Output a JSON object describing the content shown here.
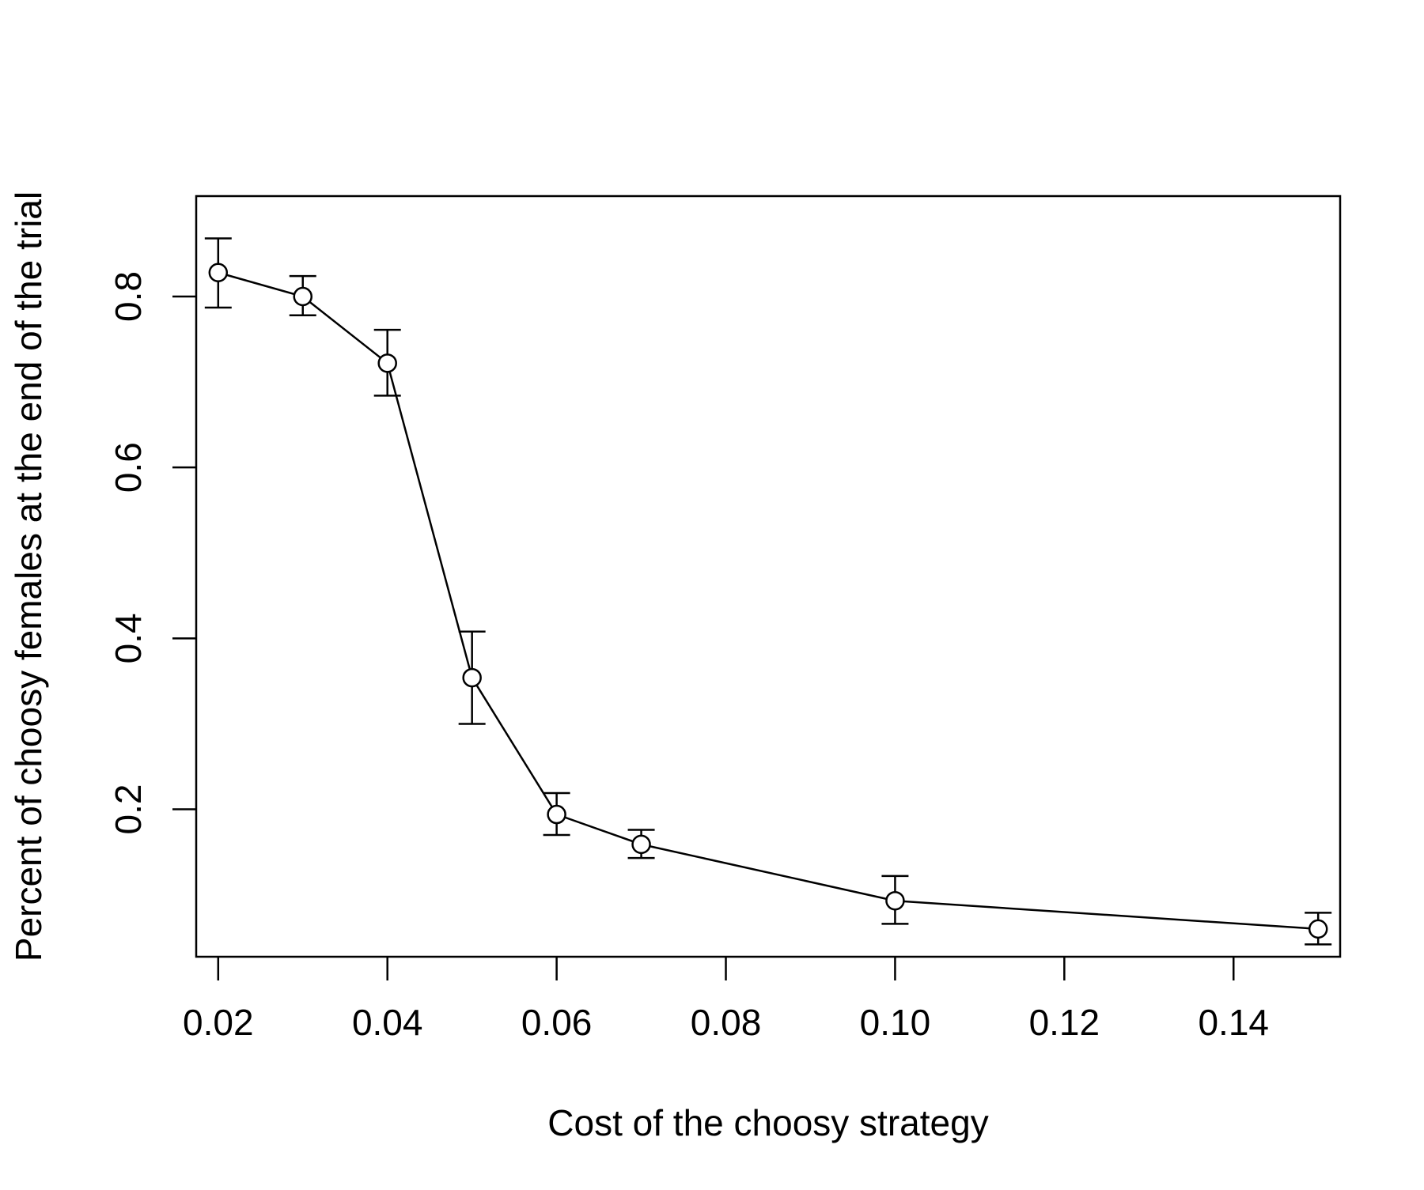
{
  "chart_data": {
    "type": "line",
    "title": "",
    "xlabel": "Cost of the choosy strategy",
    "ylabel": "Percent of choosy females at the end of the trial",
    "xlim": [
      0.0174,
      0.1526
    ],
    "ylim": [
      0.0275,
      0.9175
    ],
    "x_ticks": [
      0.02,
      0.04,
      0.06,
      0.08,
      0.1,
      0.12,
      0.14
    ],
    "x_tick_labels": [
      "0.02",
      "0.04",
      "0.06",
      "0.08",
      "0.10",
      "0.12",
      "0.14"
    ],
    "y_ticks": [
      0.2,
      0.4,
      0.6,
      0.8
    ],
    "y_tick_labels": [
      "0.2",
      "0.4",
      "0.6",
      "0.8"
    ],
    "grid": false,
    "marker": "open-circle",
    "error_bars": true,
    "colors": {
      "line": "#000000",
      "background": "#ffffff"
    },
    "series": [
      {
        "x": [
          0.02,
          0.03,
          0.04,
          0.05,
          0.06,
          0.07,
          0.1,
          0.15
        ],
        "y": [
          0.828,
          0.8,
          0.722,
          0.354,
          0.194,
          0.159,
          0.093,
          0.06
        ],
        "err_low": [
          0.787,
          0.778,
          0.684,
          0.3,
          0.17,
          0.143,
          0.066,
          0.042
        ],
        "err_high": [
          0.868,
          0.824,
          0.761,
          0.408,
          0.219,
          0.176,
          0.122,
          0.079
        ]
      }
    ]
  }
}
